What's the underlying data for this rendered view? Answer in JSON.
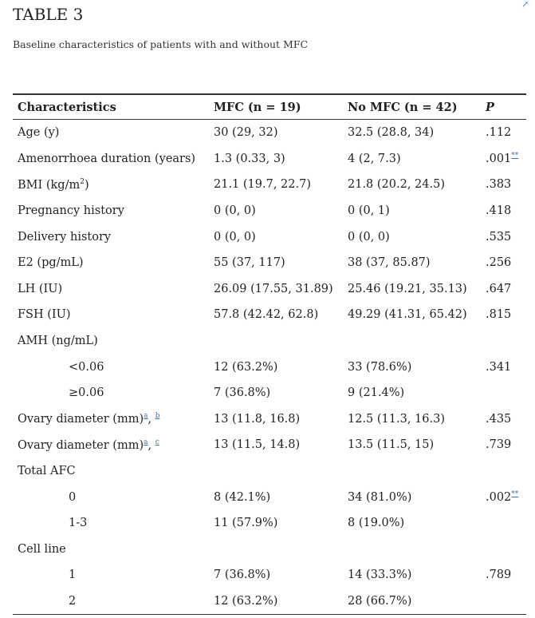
{
  "title": "TABLE 3",
  "caption": "Baseline characteristics of patients with and without MFC",
  "headers": {
    "characteristics": "Characteristics",
    "mfc": "MFC (n = 19)",
    "no_mfc": "No MFC (n = 42)",
    "p": "P"
  },
  "rows": {
    "age": {
      "label": "Age (y)",
      "mfc": "30 (29, 32)",
      "no_mfc": "32.5 (28.8, 34)",
      "p": ".112"
    },
    "amenorrhoea": {
      "label": "Amenorrhoea duration (years)",
      "mfc": "1.3 (0.33, 3)",
      "no_mfc": "4 (2, 7.3)",
      "p": ".001",
      "p_mark": "**"
    },
    "bmi": {
      "label_pre": "BMI (kg/m",
      "label_sup": "2",
      "label_post": ")",
      "mfc": "21.1 (19.7, 22.7)",
      "no_mfc": "21.8 (20.2, 24.5)",
      "p": ".383"
    },
    "pregnancy": {
      "label": "Pregnancy history",
      "mfc": "0 (0, 0)",
      "no_mfc": "0 (0, 1)",
      "p": ".418"
    },
    "delivery": {
      "label": "Delivery history",
      "mfc": "0 (0, 0)",
      "no_mfc": "0 (0, 0)",
      "p": ".535"
    },
    "e2": {
      "label": "E2 (pg/mL)",
      "mfc": "55 (37, 117)",
      "no_mfc": "38 (37, 85.87)",
      "p": ".256"
    },
    "lh": {
      "label": "LH (IU)",
      "mfc": "26.09 (17.55, 31.89)",
      "no_mfc": "25.46 (19.21, 35.13)",
      "p": ".647"
    },
    "fsh": {
      "label": "FSH (IU)",
      "mfc": "57.8 (42.42, 62.8)",
      "no_mfc": "49.29 (41.31, 65.42)",
      "p": ".815"
    },
    "amh": {
      "label": "AMH (ng/mL)"
    },
    "amh_low": {
      "label": "<0.06",
      "mfc": "12 (63.2%)",
      "no_mfc": "33 (78.6%)",
      "p": ".341"
    },
    "amh_high": {
      "label": "≥0.06",
      "mfc": "7 (36.8%)",
      "no_mfc": "9 (21.4%)"
    },
    "ovary_b": {
      "label": "Ovary diameter (mm)",
      "fn1": "a",
      "sep": ", ",
      "fn2": "b",
      "mfc": "13 (11.8, 16.8)",
      "no_mfc": "12.5 (11.3, 16.3)",
      "p": ".435"
    },
    "ovary_c": {
      "label": "Ovary diameter (mm)",
      "fn1": "a",
      "sep": ", ",
      "fn2": "c",
      "mfc": "13 (11.5, 14.8)",
      "no_mfc": "13.5 (11.5, 15)",
      "p": ".739"
    },
    "afc": {
      "label": "Total AFC"
    },
    "afc_0": {
      "label": "0",
      "mfc": "8 (42.1%)",
      "no_mfc": "34 (81.0%)",
      "p": ".002",
      "p_mark": "**"
    },
    "afc_13": {
      "label": "1-3",
      "mfc": "11 (57.9%)",
      "no_mfc": "8 (19.0%)"
    },
    "cell": {
      "label": "Cell line"
    },
    "cell_1": {
      "label": "1",
      "mfc": "7 (36.8%)",
      "no_mfc": "14 (33.3%)",
      "p": ".789"
    },
    "cell_2": {
      "label": "2",
      "mfc": "12 (63.2%)",
      "no_mfc": "28 (66.7%)"
    }
  }
}
